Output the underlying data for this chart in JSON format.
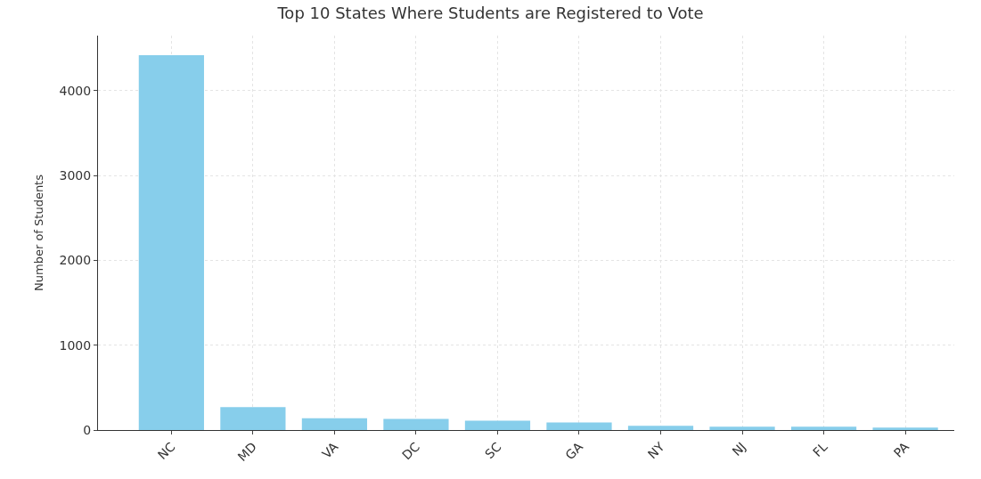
{
  "chart_data": {
    "type": "bar",
    "title": "Top 10 States Where Students are Registered to Vote",
    "ylabel": "Number of Students",
    "categories": [
      "NC",
      "MD",
      "VA",
      "DC",
      "SC",
      "GA",
      "NY",
      "NJ",
      "FL",
      "PA"
    ],
    "values": [
      4420,
      270,
      140,
      130,
      110,
      90,
      50,
      40,
      40,
      30
    ],
    "color": "#87ceeb",
    "ylim": [
      0,
      4650
    ],
    "yticks": [
      0,
      1000,
      2000,
      3000,
      4000
    ],
    "grid": true
  }
}
